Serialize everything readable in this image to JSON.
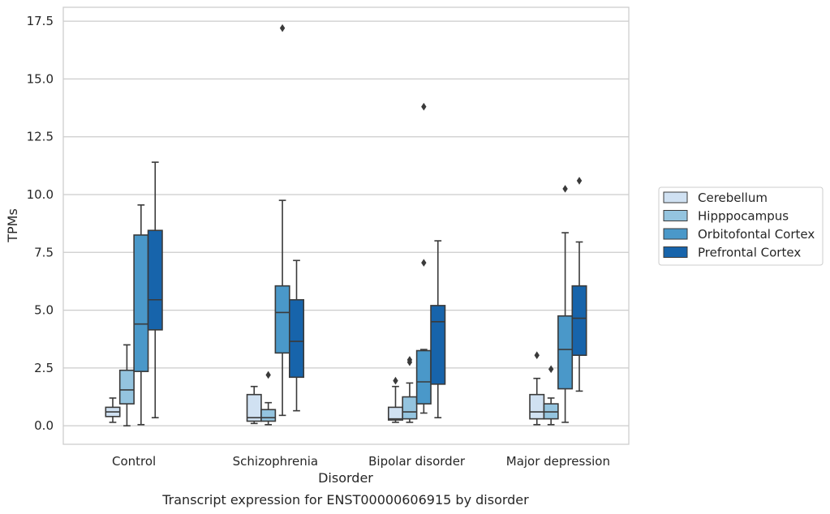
{
  "caption": "Transcript expression for ENST00000606915 by disorder",
  "chart_data": {
    "type": "box",
    "title": "",
    "xlabel": "Disorder",
    "ylabel": "TPMs",
    "ylim": [
      -0.8,
      18.1
    ],
    "yticks": [
      "0.0",
      "2.5",
      "5.0",
      "7.5",
      "10.0",
      "12.5",
      "15.0",
      "17.5"
    ],
    "grid": "horizontal",
    "legend_position": "right",
    "categories": [
      "Control",
      "Schizophrenia",
      "Bipolar disorder",
      "Major depression"
    ],
    "series": [
      {
        "name": "Cerebellum",
        "color": "#d0e1f2",
        "boxes": [
          {
            "whislo": 0.15,
            "q1": 0.4,
            "med": 0.6,
            "q3": 0.8,
            "whishi": 1.2,
            "fliers": []
          },
          {
            "whislo": 0.1,
            "q1": 0.2,
            "med": 0.35,
            "q3": 1.35,
            "whishi": 1.7,
            "fliers": []
          },
          {
            "whislo": 0.15,
            "q1": 0.25,
            "med": 0.3,
            "q3": 0.8,
            "whishi": 1.7,
            "fliers": [
              1.95
            ]
          },
          {
            "whislo": 0.05,
            "q1": 0.3,
            "med": 0.6,
            "q3": 1.35,
            "whishi": 2.05,
            "fliers": [
              3.05
            ]
          }
        ]
      },
      {
        "name": "Hipppocampus",
        "color": "#94c4df",
        "boxes": [
          {
            "whislo": 0.0,
            "q1": 0.95,
            "med": 1.55,
            "q3": 2.4,
            "whishi": 3.5,
            "fliers": []
          },
          {
            "whislo": 0.05,
            "q1": 0.2,
            "med": 0.35,
            "q3": 0.7,
            "whishi": 1.0,
            "fliers": [
              2.2
            ]
          },
          {
            "whislo": 0.15,
            "q1": 0.3,
            "med": 0.6,
            "q3": 1.25,
            "whishi": 1.85,
            "fliers": [
              2.75,
              2.85
            ]
          },
          {
            "whislo": 0.05,
            "q1": 0.3,
            "med": 0.6,
            "q3": 0.95,
            "whishi": 1.2,
            "fliers": [
              2.45
            ]
          }
        ]
      },
      {
        "name": "Orbitofontal Cortex",
        "color": "#4a98c9",
        "boxes": [
          {
            "whislo": 0.05,
            "q1": 2.35,
            "med": 4.4,
            "q3": 8.25,
            "whishi": 9.55,
            "fliers": []
          },
          {
            "whislo": 0.45,
            "q1": 3.15,
            "med": 4.9,
            "q3": 6.05,
            "whishi": 9.75,
            "fliers": [
              17.2
            ]
          },
          {
            "whislo": 0.55,
            "q1": 0.95,
            "med": 1.9,
            "q3": 3.25,
            "whishi": 3.3,
            "fliers": [
              7.05,
              13.8
            ]
          },
          {
            "whislo": 0.15,
            "q1": 1.6,
            "med": 3.3,
            "q3": 4.75,
            "whishi": 8.35,
            "fliers": [
              10.25
            ]
          }
        ]
      },
      {
        "name": "Prefrontal Cortex",
        "color": "#1764ab",
        "boxes": [
          {
            "whislo": 0.35,
            "q1": 4.15,
            "med": 5.45,
            "q3": 8.45,
            "whishi": 11.4,
            "fliers": []
          },
          {
            "whislo": 0.65,
            "q1": 2.1,
            "med": 3.65,
            "q3": 5.45,
            "whishi": 7.15,
            "fliers": []
          },
          {
            "whislo": 0.35,
            "q1": 1.8,
            "med": 4.5,
            "q3": 5.2,
            "whishi": 8.0,
            "fliers": []
          },
          {
            "whislo": 1.5,
            "q1": 3.05,
            "med": 4.65,
            "q3": 6.05,
            "whishi": 7.95,
            "fliers": [
              10.6
            ]
          }
        ]
      }
    ]
  }
}
